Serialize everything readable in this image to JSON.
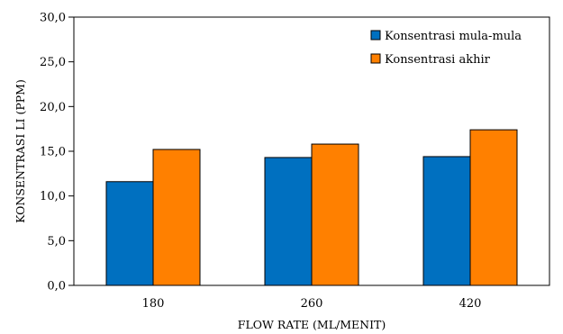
{
  "chart_data": {
    "type": "bar",
    "categories": [
      "180",
      "260",
      "420"
    ],
    "series": [
      {
        "name": "Konsentrasi mula-mula",
        "values": [
          11.6,
          14.3,
          14.4
        ],
        "color": "#0070C0"
      },
      {
        "name": "Konsentrasi akhir",
        "values": [
          15.2,
          15.8,
          17.4
        ],
        "color": "#FF8000"
      }
    ],
    "title": "",
    "xlabel": "FLOW RATE (ML/MENIT)",
    "ylabel": "KONSENTRASI LI (PPM)",
    "ylim": [
      0,
      30
    ],
    "yticks": [
      0,
      5,
      10,
      15,
      20,
      25,
      30
    ],
    "ytick_labels": [
      "0,0",
      "5,0",
      "10,0",
      "15,0",
      "20,0",
      "25,0",
      "30,0"
    ],
    "grid": false,
    "legend_position": "top-right"
  }
}
